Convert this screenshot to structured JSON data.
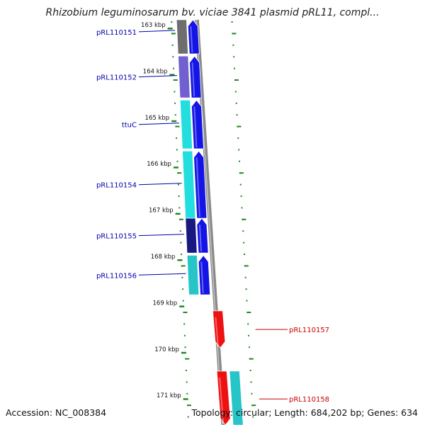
{
  "title": "Rhizobium leguminosarum bv. viciae 3841 plasmid pRL11, compl...",
  "accession": "Accession: NC_008384",
  "topology": "Topology: circular; Length: 684,202 bp; Genes: 634",
  "colors": {
    "background": "#ffffff",
    "backbone": "#8a8a8a",
    "tick": "#1f8a1f",
    "forward_gene": "#1414e6",
    "label_forward": "#0000aa",
    "label_reverse": "#cc0000",
    "reverse_gene": "#ee1111",
    "cog_gray": "#6e6e6e",
    "cog_purple": "#7060d0",
    "cog_cyan": "#22dede",
    "cog_teal": "#27c4c8",
    "cog_navy": "#181880"
  },
  "scale": {
    "ticks": [
      {
        "label": "163 kbp",
        "kbp": 163
      },
      {
        "label": "164 kbp",
        "kbp": 164
      },
      {
        "label": "165 kbp",
        "kbp": 165
      },
      {
        "label": "166 kbp",
        "kbp": 166
      },
      {
        "label": "167 kbp",
        "kbp": 167
      },
      {
        "label": "168 kbp",
        "kbp": 168
      },
      {
        "label": "169 kbp",
        "kbp": 169
      },
      {
        "label": "170 kbp",
        "kbp": 170
      },
      {
        "label": "171 kbp",
        "kbp": 171
      }
    ]
  },
  "genes": [
    {
      "name": "pRL110151",
      "strand": "forward",
      "start_kbp": 162.6,
      "end_kbp": 163.55,
      "cog": "cog_gray"
    },
    {
      "name": "pRL110152",
      "strand": "forward",
      "start_kbp": 163.6,
      "end_kbp": 164.5,
      "cog": "cog_purple"
    },
    {
      "name": "ttuC",
      "strand": "forward",
      "start_kbp": 164.55,
      "end_kbp": 165.6,
      "cog": "cog_cyan"
    },
    {
      "name": "pRL110154",
      "strand": "forward",
      "start_kbp": 165.65,
      "end_kbp": 167.1,
      "cog": "cog_cyan"
    },
    {
      "name": "pRL110155",
      "strand": "forward",
      "start_kbp": 167.1,
      "end_kbp": 167.85,
      "cog": "cog_navy"
    },
    {
      "name": "pRL110156",
      "strand": "forward",
      "start_kbp": 167.9,
      "end_kbp": 168.75,
      "cog": "cog_teal"
    },
    {
      "name": "pRL110157",
      "strand": "reverse",
      "start_kbp": 169.1,
      "end_kbp": 169.9,
      "cog": "none"
    },
    {
      "name": "pRL110158",
      "strand": "reverse",
      "start_kbp": 170.4,
      "end_kbp": 171.6,
      "cog": "cog_teal"
    }
  ]
}
